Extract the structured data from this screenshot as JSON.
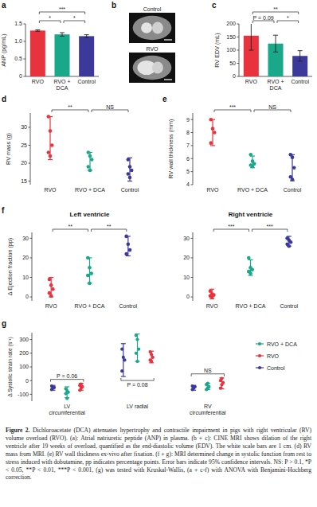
{
  "chart_data": [
    {
      "panel": "a",
      "type": "bar",
      "ylabel": "ANP (pg/mL)",
      "categories": [
        "RVO",
        "RVO + DCA",
        "Control"
      ],
      "values": [
        1.31,
        1.2,
        1.15
      ],
      "errors": [
        0.02,
        0.05,
        0.04
      ],
      "colors": [
        "#e8333f",
        "#1aa88a",
        "#3b3a9b"
      ],
      "ylim": [
        0,
        1.5
      ],
      "yticks": [
        0,
        0.5,
        {
          "value": 1,
          "label": "1.0"
        },
        1.5
      ],
      "annotations": [
        {
          "text": "*",
          "from": 0,
          "to": 1
        },
        {
          "text": "*",
          "from": 1,
          "to": 2
        },
        {
          "text": "***",
          "from": 0,
          "to": 2
        }
      ]
    },
    {
      "panel": "c",
      "type": "bar",
      "ylabel": "RV EDV (mL)",
      "categories": [
        "RVO",
        "RVO + DCA",
        "Control"
      ],
      "values": [
        155,
        125,
        78
      ],
      "errors": [
        55,
        32,
        20
      ],
      "colors": [
        "#e8333f",
        "#1aa88a",
        "#3b3a9b"
      ],
      "ylim": [
        0,
        200
      ],
      "yticks": [
        0,
        50,
        100,
        150,
        200
      ],
      "annotations": [
        {
          "text": "P = 0.09",
          "from": 0,
          "to": 1
        },
        {
          "text": "*",
          "from": 1,
          "to": 2
        },
        {
          "text": "**",
          "from": 0,
          "to": 2
        }
      ]
    },
    {
      "panel": "d",
      "type": "strip",
      "ylabel": "RV mass (g)",
      "categories": [
        "RVO",
        "RVO + DCA",
        "Control"
      ],
      "colors": [
        "#e8333f",
        "#1aa88a",
        "#3b3a9b"
      ],
      "values": [
        [
          33,
          29,
          25,
          23,
          22
        ],
        [
          23,
          22,
          21,
          19,
          18
        ],
        [
          21,
          19,
          18,
          17,
          16
        ]
      ],
      "ci": [
        [
          21,
          33
        ],
        [
          18,
          23
        ],
        [
          15,
          21.5
        ]
      ],
      "ylim": [
        14,
        34
      ],
      "yticks": [
        15,
        20,
        25,
        30
      ],
      "annotations": [
        {
          "text": "**",
          "from": 0,
          "to": 1
        },
        {
          "text": "NS",
          "from": 1,
          "to": 2
        }
      ]
    },
    {
      "panel": "e",
      "type": "strip",
      "ylabel": "RV wall thickness (mm)",
      "categories": [
        "RVO",
        "RVO + DCA",
        "Control"
      ],
      "colors": [
        "#e8333f",
        "#1aa88a",
        "#3b3a9b"
      ],
      "values": [
        [
          9,
          8.3,
          8,
          7.2
        ],
        [
          6.3,
          5.8,
          5.6,
          5.5,
          5.4
        ],
        [
          6.3,
          6.1,
          5.3,
          4.6,
          4.4
        ]
      ],
      "ci": [
        [
          7,
          9
        ],
        [
          5.3,
          6.2
        ],
        [
          4.3,
          6.3
        ]
      ],
      "ylim": [
        4,
        9.5
      ],
      "yticks": [
        4,
        5,
        6,
        7,
        8,
        9
      ],
      "annotations": [
        {
          "text": "***",
          "from": 0,
          "to": 1
        },
        {
          "text": "NS",
          "from": 1,
          "to": 2
        }
      ]
    },
    {
      "panel": "f",
      "type": "strip",
      "title": "Left ventricle",
      "ylabel": "Δ Ejection fraction (pp)",
      "categories": [
        "RVO",
        "RVO + DCA",
        "Control"
      ],
      "colors": [
        "#e8333f",
        "#1aa88a",
        "#3b3a9b"
      ],
      "values": [
        [
          9,
          6,
          4,
          2,
          0.5
        ],
        [
          20,
          15,
          12,
          11,
          7
        ],
        [
          31,
          27,
          24,
          22
        ]
      ],
      "ci": [
        [
          0,
          10
        ],
        [
          7,
          20
        ],
        [
          21,
          31
        ]
      ],
      "ylim": [
        -2,
        33
      ],
      "yticks": [
        0,
        10,
        20,
        30
      ],
      "annotations": [
        {
          "text": "**",
          "from": 0,
          "to": 1
        },
        {
          "text": "**",
          "from": 1,
          "to": 2
        }
      ]
    },
    {
      "type": "strip",
      "title": "Right ventricle",
      "categories": [
        "RVO",
        "RVO + DCA",
        "Control"
      ],
      "colors": [
        "#e8333f",
        "#1aa88a",
        "#3b3a9b"
      ],
      "values": [
        [
          3,
          1.5,
          1,
          0.5,
          0
        ],
        [
          20,
          15,
          14,
          13,
          12
        ],
        [
          30,
          29,
          28,
          27,
          26
        ]
      ],
      "ci": [
        [
          -1,
          4
        ],
        [
          11,
          19
        ],
        [
          26,
          31
        ]
      ],
      "ylim": [
        -2,
        33
      ],
      "yticks": [
        0,
        10,
        20,
        30
      ],
      "annotations": [
        {
          "text": "***",
          "from": 0,
          "to": 1
        },
        {
          "text": "***",
          "from": 1,
          "to": 2
        }
      ]
    },
    {
      "panel": "g",
      "type": "grouped_strip",
      "ylabel": "Δ Systolic strain rate (s⁻¹)",
      "categories": [
        "LV circumferential",
        "LV radial",
        "RV circumferential"
      ],
      "legend": "right",
      "series": [
        {
          "name": "RVO + DCA",
          "color": "#1aa88a",
          "values": [
            [
              -60,
              -75,
              -85,
              -95,
              -130
            ],
            [
              330,
              300,
              230,
              200,
              140
            ],
            [
              -65,
              -55,
              -45,
              -30,
              -20
            ]
          ],
          "ci": [
            [
              -125,
              -45
            ],
            [
              140,
              340
            ],
            [
              -65,
              -20
            ]
          ]
        },
        {
          "name": "RVO",
          "color": "#e8333f",
          "values": [
            [
              -70,
              -55,
              -45,
              -35,
              -25
            ],
            [
              210,
              190,
              170,
              150,
              140
            ],
            [
              -55,
              -30,
              -15,
              0,
              15
            ]
          ],
          "ci": [
            [
              -70,
              -20
            ],
            [
              130,
              215
            ],
            [
              -60,
              20
            ]
          ]
        },
        {
          "name": "Control",
          "color": "#3b3a9b",
          "values": [
            [
              -65,
              -55,
              -50,
              -40
            ],
            [
              230,
              170,
              150,
              70
            ],
            [
              -65,
              -55,
              -45,
              -40
            ]
          ],
          "ci": [
            [
              -70,
              -35
            ],
            [
              30,
              270
            ],
            [
              -70,
              -35
            ]
          ]
        }
      ],
      "ylim": [
        -150,
        350
      ],
      "yticks": [
        -100,
        0,
        100,
        200,
        300
      ],
      "annotations": [
        {
          "text": "P = 0.06",
          "category": 0,
          "position": "above"
        },
        {
          "text": "P = 0.08",
          "category": 1,
          "position": "below"
        },
        {
          "text": "NS",
          "category": 2,
          "position": "above"
        }
      ]
    }
  ],
  "images": {
    "panel": "b",
    "labels": [
      "Control",
      "RVO"
    ]
  },
  "caption": {
    "label": "Figure 2.",
    "text": "Dichloroacetate (DCA) attenuates hypertrophy and contractile impairment in pigs with right ventricular (RV) volume overload (RVO). (a): Atrial natriuretic peptide (ANP) in plasma. (b + c): CINE MRI shows dilation of the right ventricle after 19 weeks of overload, quantified as the end-diastolic volume (EDV). The white scale bars are 1 cm. (d) RV mass from MRI. (e) RV wall thickness ex-vivo after fixation. (f + g): MRI determined change in systolic function from rest to stress induced with dobutamine, pp indicates percentage points. Error bars indicate 95% confidence intervals. NS: P > 0.1, *P < 0.05, **P < 0.01, ***P < 0.001, (g) was tested with Kruskal-Wallis, (a + c-f) with ANOVA with Benjamini-Hochberg correction."
  }
}
